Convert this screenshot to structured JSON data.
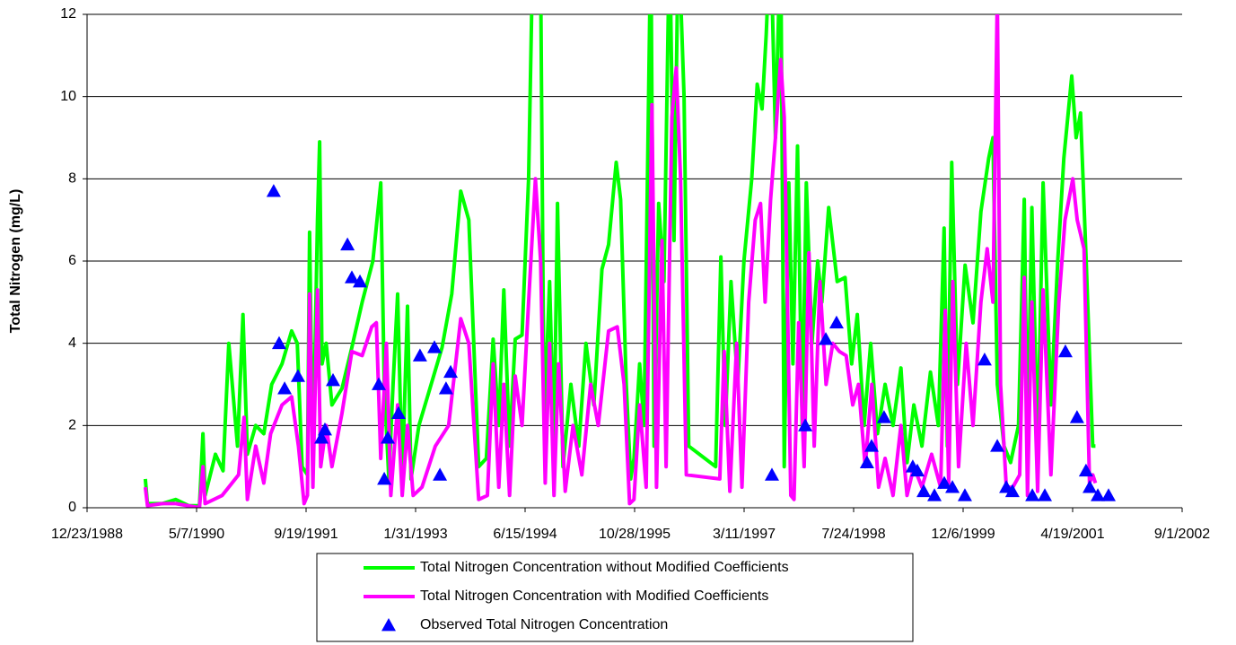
{
  "chart_data": {
    "type": "line",
    "y_label": "Total Nitrogen (mg/L)",
    "ylim": [
      0,
      12
    ],
    "yticks": [
      0,
      2,
      4,
      6,
      8,
      10,
      12
    ],
    "xlim": [
      "12/23/1988",
      "9/1/2002"
    ],
    "xticks": [
      "12/23/1988",
      "5/7/1990",
      "9/19/1991",
      "1/31/1993",
      "6/15/1994",
      "10/28/1995",
      "3/11/1997",
      "7/24/1998",
      "12/6/1999",
      "4/19/2001",
      "9/1/2002"
    ],
    "grid": true,
    "legend": "bottom",
    "series": [
      {
        "name": "Total Nitrogen Concentration without Modified Coefficients",
        "color": "#00ff00",
        "type": "line",
        "x": [
          "9/15/1989",
          "9/25/1989",
          "12/1/1989",
          "2/1/1990",
          "4/1/1990",
          "5/20/1990",
          "6/5/1990",
          "6/15/1990",
          "8/1/1990",
          "9/5/1990",
          "10/1/1990",
          "11/10/1990",
          "12/5/1990",
          "12/25/1990",
          "2/1/1991",
          "3/10/1991",
          "4/15/1991",
          "6/1/1991",
          "7/15/1991",
          "8/10/1991",
          "9/1/1991",
          "9/25/1991",
          "10/5/1991",
          "10/20/1991",
          "11/10/1991",
          "11/20/1991",
          "12/1/1991",
          "12/20/1991",
          "1/15/1992",
          "3/1/1992",
          "4/15/1992",
          "6/1/1992",
          "7/20/1992",
          "8/25/1992",
          "9/10/1992",
          "10/1/1992",
          "10/20/1992",
          "11/10/1992",
          "12/1/1992",
          "12/25/1992",
          "1/10/1993",
          "2/15/1993",
          "4/1/1993",
          "6/1/1993",
          "7/15/1993",
          "8/25/1993",
          "10/1/1993",
          "11/15/1993",
          "12/20/1993",
          "1/20/1994",
          "2/15/1994",
          "3/10/1994",
          "4/5/1994",
          "5/1/1994",
          "6/1/1994",
          "7/1/1994",
          "7/25/1994",
          "8/25/1994",
          "9/10/1994",
          "10/5/1994",
          "10/25/1994",
          "11/10/1994",
          "12/5/1994",
          "1/10/1995",
          "2/15/1995",
          "3/20/1995",
          "4/25/1995",
          "6/1/1995",
          "7/1/1995",
          "8/5/1995",
          "8/25/1995",
          "9/20/1995",
          "10/10/1995",
          "10/25/1995",
          "11/20/1995",
          "12/10/1995",
          "1/10/1996",
          "1/25/1996",
          "2/15/1996",
          "3/10/1996",
          "4/5/1996",
          "4/25/1996",
          "5/15/1996",
          "6/10/1996",
          "7/1/1996",
          "11/1/1996",
          "11/25/1996",
          "12/15/1996",
          "1/10/1997",
          "2/10/1997",
          "3/10/1997",
          "4/15/1997",
          "5/10/1997",
          "6/1/1997",
          "6/20/1997",
          "7/10/1997",
          "8/1/1997",
          "8/25/1997",
          "9/10/1997",
          "10/1/1997",
          "10/20/1997",
          "11/10/1997",
          "12/1/1997",
          "12/20/1997",
          "1/15/1998",
          "2/10/1998",
          "3/1/1998",
          "4/1/1998",
          "5/10/1998",
          "6/15/1998",
          "7/15/1998",
          "8/10/1998",
          "9/10/1998",
          "10/10/1998",
          "11/10/1998",
          "12/15/1998",
          "1/20/1999",
          "2/25/1999",
          "3/25/1999",
          "4/25/1999",
          "6/1/1999",
          "7/10/1999",
          "8/15/1999",
          "9/10/1999",
          "9/25/1999",
          "10/15/1999",
          "11/10/1999",
          "12/15/1999",
          "1/20/2000",
          "2/25/2000",
          "4/1/2000",
          "4/20/2000",
          "5/10/2000",
          "6/10/2000",
          "7/10/2000",
          "8/15/2000",
          "9/10/2000",
          "9/25/2000",
          "10/15/2000",
          "11/10/2000",
          "12/5/2000",
          "1/10/2001",
          "2/10/2001",
          "3/10/2001",
          "4/15/2001",
          "5/5/2001",
          "5/25/2001",
          "6/20/2001",
          "7/20/2001",
          "8/1/2001"
        ],
        "values": [
          0.7,
          0.1,
          0.1,
          0.2,
          0.05,
          0.05,
          1.8,
          0.3,
          1.3,
          0.9,
          4.0,
          1.5,
          4.7,
          1.3,
          2.0,
          1.8,
          3.0,
          3.5,
          4.3,
          4.0,
          1.0,
          0.8,
          6.7,
          1.0,
          7.0,
          8.9,
          3.5,
          4.0,
          2.5,
          2.9,
          3.9,
          5.0,
          6.0,
          7.9,
          3.0,
          0.7,
          3.0,
          5.2,
          0.7,
          4.9,
          0.7,
          2.0,
          2.8,
          3.9,
          5.2,
          7.7,
          7.0,
          1.0,
          1.2,
          4.1,
          2.0,
          5.3,
          1.5,
          4.1,
          4.2,
          8.0,
          15,
          13,
          2.0,
          5.5,
          1.5,
          7.4,
          1.0,
          3.0,
          1.5,
          4.0,
          2.5,
          5.8,
          6.4,
          8.4,
          7.5,
          3.0,
          0.7,
          1.2,
          3.5,
          2.0,
          14,
          1.5,
          7.4,
          5.5,
          14,
          6.5,
          14,
          10,
          1.5,
          1.0,
          6.1,
          2.0,
          5.5,
          3.0,
          6.0,
          8.0,
          10.3,
          9.7,
          11.5,
          14,
          9,
          14,
          1.0,
          7.9,
          3.5,
          8.8,
          2.0,
          7.9,
          4.0,
          6.0,
          5.0,
          7.3,
          5.5,
          5.6,
          3.5,
          4.7,
          2.0,
          4.0,
          1.8,
          3.0,
          2.0,
          3.4,
          1.1,
          2.5,
          1.5,
          3.3,
          2.0,
          6.8,
          1.5,
          8.4,
          3.0,
          5.9,
          4.5,
          7.2,
          8.5,
          9.0,
          3.0,
          1.5,
          1.1,
          2.0,
          7.5,
          1.5,
          7.3,
          1.5,
          7.9,
          2.5,
          6.0,
          8.5,
          10.5,
          9.0,
          9.6,
          6.0,
          1.5,
          1.5
        ]
      },
      {
        "name": "Total Nitrogen Concentration with Modified Coefficients",
        "color": "#ff00ff",
        "type": "line",
        "x": [
          "9/15/1989",
          "9/25/1989",
          "12/1/1989",
          "2/1/1990",
          "5/20/1990",
          "6/5/1990",
          "6/15/1990",
          "9/1/1990",
          "11/15/1990",
          "12/10/1990",
          "12/25/1990",
          "2/1/1991",
          "3/10/1991",
          "4/10/1991",
          "6/1/1991",
          "7/15/1991",
          "8/15/1991",
          "9/10/1991",
          "9/25/1991",
          "10/5/1991",
          "10/20/1991",
          "11/10/1991",
          "11/25/1991",
          "12/20/1991",
          "1/15/1992",
          "3/1/1992",
          "4/15/1992",
          "6/1/1992",
          "7/15/1992",
          "8/5/1992",
          "8/25/1992",
          "9/20/1992",
          "10/10/1992",
          "11/10/1992",
          "12/1/1992",
          "12/25/1992",
          "1/20/1993",
          "3/1/1993",
          "5/1/1993",
          "7/1/1993",
          "8/25/1993",
          "10/1/1993",
          "11/15/1993",
          "12/25/1993",
          "1/20/1994",
          "2/15/1994",
          "3/10/1994",
          "4/5/1994",
          "5/1/1994",
          "6/1/1994",
          "7/1/1994",
          "8/1/1994",
          "8/25/1994",
          "9/15/1994",
          "10/5/1994",
          "10/25/1994",
          "11/15/1994",
          "12/15/1994",
          "1/20/1995",
          "3/1/1995",
          "4/10/1995",
          "5/15/1995",
          "7/1/1995",
          "8/10/1995",
          "9/10/1995",
          "10/5/1995",
          "10/25/1995",
          "11/20/1995",
          "12/20/1995",
          "1/15/1996",
          "2/5/1996",
          "3/1/1996",
          "3/20/1996",
          "4/15/1996",
          "5/5/1996",
          "5/25/1996",
          "6/20/1996",
          "11/20/1996",
          "12/10/1996",
          "1/5/1997",
          "2/5/1997",
          "3/1/1997",
          "4/1/1997",
          "5/1/1997",
          "5/25/1997",
          "6/15/1997",
          "7/10/1997",
          "8/1/1997",
          "8/25/1997",
          "9/10/1997",
          "9/25/1997",
          "10/10/1997",
          "10/25/1997",
          "11/15/1997",
          "12/10/1997",
          "1/1/1998",
          "1/25/1998",
          "2/20/1998",
          "3/20/1998",
          "4/20/1998",
          "5/20/1998",
          "6/20/1998",
          "7/20/1998",
          "8/15/1998",
          "9/15/1998",
          "10/15/1998",
          "11/15/1998",
          "12/15/1998",
          "1/20/1999",
          "2/25/1999",
          "3/25/1999",
          "4/25/1999",
          "6/1/1999",
          "7/15/1999",
          "8/25/1999",
          "9/15/1999",
          "10/1/1999",
          "10/20/1999",
          "11/15/1999",
          "12/20/1999",
          "1/20/2000",
          "2/25/2000",
          "3/25/2000",
          "4/20/2000",
          "5/10/2000",
          "5/25/2000",
          "6/20/2000",
          "7/20/2000",
          "8/20/2000",
          "9/10/2000",
          "9/25/2000",
          "10/15/2000",
          "11/10/2000",
          "12/5/2000",
          "1/10/2001",
          "2/15/2001",
          "3/15/2001",
          "4/20/2001",
          "5/10/2001",
          "6/10/2001",
          "7/5/2001",
          "7/20/2001",
          "8/1/2001"
        ],
        "values": [
          0.5,
          0.05,
          0.1,
          0.1,
          0.0,
          1.0,
          0.1,
          0.3,
          0.8,
          2.2,
          0.2,
          1.5,
          0.6,
          1.8,
          2.5,
          2.7,
          1.5,
          0.1,
          0.3,
          5.2,
          0.5,
          5.3,
          1.0,
          2.0,
          1.0,
          2.3,
          3.8,
          3.7,
          4.4,
          4.5,
          1.2,
          4.0,
          0.3,
          2.5,
          0.3,
          2.0,
          0.3,
          0.5,
          1.5,
          2.0,
          4.6,
          4.0,
          0.2,
          0.3,
          3.5,
          0.5,
          3.0,
          0.3,
          3.2,
          2.0,
          5.0,
          8.0,
          6.0,
          0.6,
          4.0,
          0.3,
          3.5,
          0.4,
          2.0,
          0.8,
          3.0,
          2.0,
          4.3,
          4.4,
          3.0,
          0.1,
          0.2,
          2.5,
          0.5,
          9.8,
          0.5,
          6.5,
          1.0,
          9.5,
          10.7,
          8.0,
          0.8,
          0.7,
          3.8,
          0.4,
          4.0,
          0.5,
          5.0,
          7.0,
          7.4,
          5.0,
          7.5,
          9.0,
          10.9,
          9.5,
          5.0,
          0.3,
          0.2,
          4.5,
          1.0,
          6.2,
          1.5,
          5.5,
          3.0,
          4.0,
          3.8,
          3.7,
          2.5,
          3.0,
          1.0,
          3.0,
          0.5,
          1.2,
          0.3,
          2.0,
          0.3,
          1.0,
          0.5,
          1.3,
          0.5,
          4.8,
          0.6,
          5.5,
          1.0,
          4.0,
          2.0,
          5.0,
          6.3,
          5.0,
          12.5,
          3.0,
          0.5,
          0.5,
          0.8,
          5.6,
          0.3,
          5.0,
          0.4,
          5.3,
          0.8,
          5.0,
          7.0,
          8.0,
          7.0,
          6.3,
          0.6,
          0.8,
          0.6
        ]
      },
      {
        "name": "Observed Total Nitrogen Concentration",
        "color": "#0000ff",
        "type": "scatter",
        "x": [
          "4/24/1991",
          "5/19/1991",
          "6/13/1991",
          "8/13/1991",
          "11/28/1991",
          "12/14/1991",
          "1/20/1992",
          "3/26/1992",
          "4/15/1992",
          "5/22/1992",
          "8/16/1992",
          "9/10/1992",
          "9/26/1992",
          "11/14/1992",
          "2/20/1993",
          "4/27/1993",
          "5/22/1993",
          "6/19/1993",
          "7/10/1993",
          "7/16/1997",
          "12/15/1997",
          "3/19/1998",
          "5/7/1998",
          "9/23/1998",
          "10/14/1998",
          "12/10/1998",
          "4/20/1999",
          "5/11/1999",
          "6/9/1999",
          "7/28/1999",
          "9/11/1999",
          "10/18/1999",
          "12/14/1999",
          "3/13/2000",
          "5/10/2000",
          "6/20/2000",
          "7/18/2000",
          "10/17/2000",
          "12/13/2000",
          "3/17/2001",
          "5/9/2001",
          "6/19/2001",
          "7/6/2001",
          "8/12/2001",
          "9/30/2001"
        ],
        "values": [
          7.7,
          4.0,
          2.9,
          3.2,
          1.7,
          1.9,
          3.1,
          6.4,
          5.6,
          5.5,
          3.0,
          0.7,
          1.7,
          2.3,
          3.7,
          3.9,
          0.8,
          2.9,
          3.3,
          0.8,
          2.0,
          4.1,
          4.5,
          1.1,
          1.5,
          2.2,
          1.0,
          0.9,
          0.4,
          0.3,
          0.6,
          0.5,
          0.3,
          3.6,
          1.5,
          0.5,
          0.4,
          0.3,
          0.3,
          3.8,
          2.2,
          0.9,
          0.5,
          0.3,
          0.3
        ]
      }
    ]
  }
}
